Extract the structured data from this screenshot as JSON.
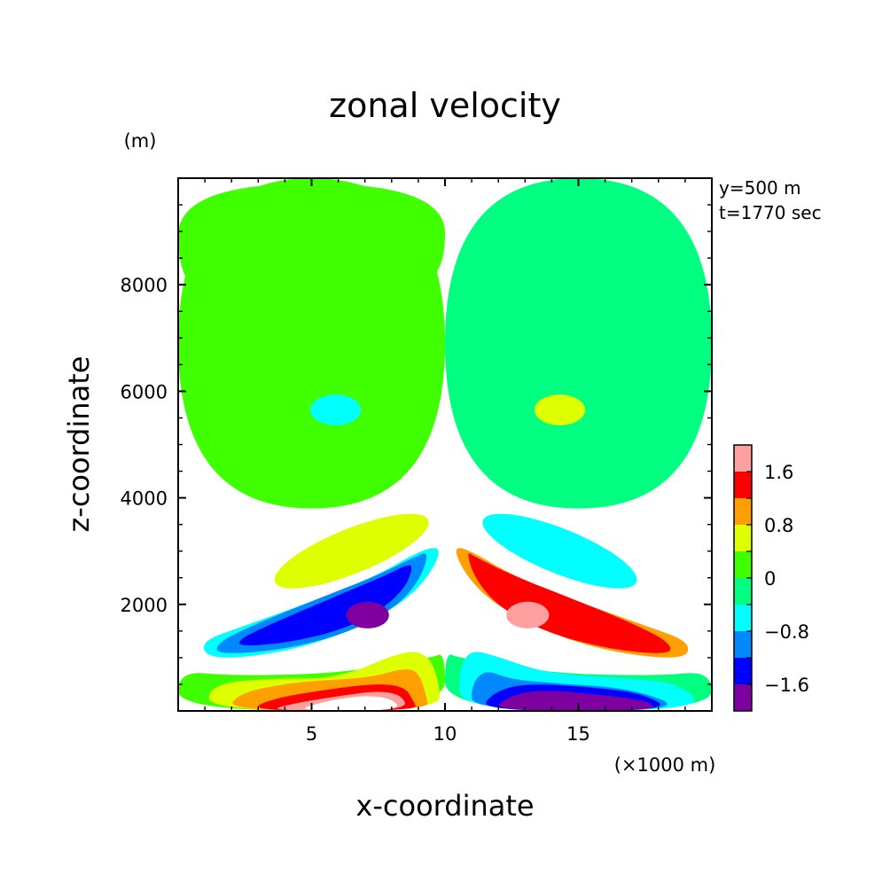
{
  "chart_data": {
    "type": "heatmap",
    "title": "zonal velocity",
    "xlabel": "x-coordinate",
    "ylabel": "z-coordinate",
    "x_unit": "(×1000 m)",
    "y_unit": "(m)",
    "annotations": [
      "y=500 m",
      "t=1770 sec"
    ],
    "xlim": [
      0,
      20
    ],
    "ylim": [
      0,
      10000
    ],
    "x_ticks": [
      5,
      10,
      15
    ],
    "x_tick_labels": [
      "5",
      "10",
      "15"
    ],
    "y_ticks": [
      2000,
      4000,
      6000,
      8000
    ],
    "y_tick_labels": [
      "2000",
      "4000",
      "6000",
      "8000"
    ],
    "colorbar": {
      "levels": [
        -2.0,
        -1.6,
        -1.2,
        -0.8,
        -0.4,
        0,
        0.4,
        0.8,
        1.2,
        1.6,
        2.0
      ],
      "colors": [
        "#7f00a0",
        "#0000ff",
        "#0088ff",
        "#00ffff",
        "#00ff80",
        "#40ff00",
        "#ddff00",
        "#ffa000",
        "#ff0000",
        "#ffa0a0"
      ],
      "tick_values": [
        -1.6,
        -0.8,
        0,
        0.8,
        1.6
      ],
      "tick_labels": [
        "−1.6",
        "−0.8",
        "0",
        "0.8",
        "1.6"
      ]
    },
    "regions": [
      {
        "name": "upper-left",
        "level": 0.0,
        "points": [
          [
            0,
            10000
          ],
          [
            10,
            10000
          ],
          [
            10,
            3800
          ],
          [
            0,
            3800
          ]
        ]
      },
      {
        "name": "upper-right",
        "level": -0.2,
        "points": [
          [
            10,
            10000
          ],
          [
            20,
            10000
          ],
          [
            20,
            3800
          ],
          [
            10,
            3800
          ]
        ]
      },
      {
        "name": "top-band-left",
        "level": 0.1,
        "points": [
          [
            0,
            9900
          ],
          [
            10,
            9900
          ],
          [
            10,
            8050
          ],
          [
            8,
            8150
          ],
          [
            5,
            8000
          ],
          [
            2,
            7850
          ],
          [
            0,
            7950
          ]
        ]
      },
      {
        "name": "cyan-blob-left",
        "level": -0.5,
        "ellipse": [
          5.9,
          5650,
          0.95,
          290
        ]
      },
      {
        "name": "yellow-blob-right",
        "level": 0.5,
        "ellipse": [
          14.3,
          5650,
          0.95,
          290
        ]
      },
      {
        "name": "yellow-band-left",
        "level": 0.5,
        "ellipse": [
          6.5,
          3000,
          3.1,
          420,
          -22
        ]
      },
      {
        "name": "cyan-band-right",
        "level": -0.5,
        "ellipse": [
          14.3,
          3000,
          3.1,
          420,
          22
        ]
      },
      {
        "name": "left-cyan",
        "level": -0.6,
        "points": [
          [
            9.9,
            3100
          ],
          [
            9.5,
            2600
          ],
          [
            8.5,
            2050
          ],
          [
            6.5,
            1500
          ],
          [
            4,
            1100
          ],
          [
            1.2,
            950
          ],
          [
            0.8,
            1300
          ],
          [
            2.5,
            1600
          ],
          [
            5,
            2050
          ],
          [
            7.5,
            2550
          ],
          [
            9,
            3000
          ]
        ]
      },
      {
        "name": "left-blue",
        "level": -1.0,
        "points": [
          [
            9.4,
            3000
          ],
          [
            9.1,
            2500
          ],
          [
            8.2,
            1950
          ],
          [
            6.4,
            1470
          ],
          [
            4,
            1150
          ],
          [
            1.4,
            1050
          ],
          [
            1.5,
            1300
          ],
          [
            3,
            1650
          ],
          [
            5.2,
            2100
          ],
          [
            7.5,
            2550
          ],
          [
            8.9,
            2900
          ]
        ]
      },
      {
        "name": "left-dark-blue",
        "level": -1.4,
        "points": [
          [
            8.8,
            2700
          ],
          [
            8.5,
            2300
          ],
          [
            7.5,
            1850
          ],
          [
            6,
            1500
          ],
          [
            4,
            1270
          ],
          [
            2.2,
            1210
          ],
          [
            2.4,
            1380
          ],
          [
            3.8,
            1700
          ],
          [
            5.8,
            2130
          ],
          [
            7.8,
            2550
          ],
          [
            8.6,
            2750
          ]
        ]
      },
      {
        "name": "left-purple",
        "level": -1.8,
        "ellipse": [
          7.1,
          1800,
          0.8,
          250
        ]
      },
      {
        "name": "right-orange",
        "level": 1.0,
        "points": [
          [
            10.3,
            3100
          ],
          [
            10.7,
            2600
          ],
          [
            11.7,
            2050
          ],
          [
            13.7,
            1500
          ],
          [
            16.2,
            1100
          ],
          [
            19,
            950
          ],
          [
            19.2,
            1300
          ],
          [
            17.5,
            1600
          ],
          [
            15,
            2050
          ],
          [
            12.5,
            2550
          ],
          [
            11,
            3000
          ]
        ]
      },
      {
        "name": "right-red",
        "level": 1.4,
        "points": [
          [
            10.8,
            3000
          ],
          [
            11.1,
            2500
          ],
          [
            12,
            1950
          ],
          [
            13.8,
            1470
          ],
          [
            16.2,
            1150
          ],
          [
            18.5,
            1050
          ],
          [
            18.4,
            1300
          ],
          [
            17,
            1650
          ],
          [
            14.8,
            2100
          ],
          [
            12.5,
            2550
          ],
          [
            11.1,
            2900
          ]
        ]
      },
      {
        "name": "right-pink",
        "level": 1.8,
        "ellipse": [
          13.1,
          1800,
          0.8,
          250
        ]
      },
      {
        "name": "low-green-left",
        "level": 0.0,
        "points": [
          [
            0,
            750
          ],
          [
            2,
            660
          ],
          [
            6,
            700
          ],
          [
            9.5,
            1000
          ],
          [
            10,
            1100
          ],
          [
            10,
            0
          ],
          [
            0,
            0
          ]
        ]
      },
      {
        "name": "low-green-right",
        "level": -0.2,
        "points": [
          [
            10,
            1100
          ],
          [
            10.5,
            1000
          ],
          [
            14,
            700
          ],
          [
            18,
            660
          ],
          [
            20,
            750
          ],
          [
            20,
            0
          ],
          [
            10,
            0
          ]
        ]
      },
      {
        "name": "bottom-left-yellow",
        "level": 0.5,
        "points": [
          [
            1.1,
            0
          ],
          [
            1.2,
            500
          ],
          [
            3.5,
            620
          ],
          [
            6,
            600
          ],
          [
            8.5,
            1150
          ],
          [
            9.4,
            1050
          ],
          [
            9.8,
            500
          ],
          [
            9.8,
            0
          ]
        ]
      },
      {
        "name": "bottom-left-orange",
        "level": 1.0,
        "points": [
          [
            1.8,
            0
          ],
          [
            2.3,
            350
          ],
          [
            4.5,
            550
          ],
          [
            7.2,
            620
          ],
          [
            8.4,
            800
          ],
          [
            9,
            750
          ],
          [
            9.3,
            300
          ],
          [
            9.4,
            0
          ]
        ]
      },
      {
        "name": "bottom-left-red",
        "level": 1.4,
        "points": [
          [
            2.6,
            0
          ],
          [
            3.5,
            230
          ],
          [
            5.5,
            400
          ],
          [
            7.5,
            520
          ],
          [
            8.5,
            450
          ],
          [
            8.8,
            200
          ],
          [
            9.0,
            0
          ]
        ]
      },
      {
        "name": "bottom-left-pink",
        "level": 1.8,
        "points": [
          [
            3.3,
            0
          ],
          [
            4.3,
            140
          ],
          [
            6,
            280
          ],
          [
            7.5,
            380
          ],
          [
            8.4,
            300
          ],
          [
            8.6,
            0
          ]
        ]
      },
      {
        "name": "bottom-left-white",
        "level": 2.2,
        "points": [
          [
            4.3,
            0
          ],
          [
            5.5,
            180
          ],
          [
            7,
            300
          ],
          [
            8.1,
            220
          ],
          [
            8.3,
            0
          ]
        ]
      },
      {
        "name": "bottom-right-cyan",
        "level": -0.6,
        "points": [
          [
            10.6,
            0
          ],
          [
            10.5,
            700
          ],
          [
            10.9,
            1150
          ],
          [
            11.8,
            1050
          ],
          [
            13.8,
            700
          ],
          [
            16.5,
            620
          ],
          [
            18.8,
            530
          ],
          [
            19.8,
            0
          ]
        ]
      },
      {
        "name": "bottom-right-lightblue",
        "level": -1.0,
        "points": [
          [
            11.0,
            0
          ],
          [
            11.0,
            500
          ],
          [
            11.5,
            780
          ],
          [
            12.4,
            600
          ],
          [
            14,
            520
          ],
          [
            17,
            430
          ],
          [
            19.2,
            0
          ]
        ]
      },
      {
        "name": "bottom-right-blue",
        "level": -1.4,
        "points": [
          [
            11.3,
            0
          ],
          [
            11.8,
            350
          ],
          [
            13,
            520
          ],
          [
            15.5,
            450
          ],
          [
            17.5,
            320
          ],
          [
            18.5,
            0
          ]
        ]
      },
      {
        "name": "bottom-right-purple",
        "level": -1.8,
        "points": [
          [
            11.7,
            0
          ],
          [
            12.4,
            280
          ],
          [
            13.5,
            400
          ],
          [
            15.5,
            320
          ],
          [
            17.6,
            200
          ],
          [
            18.0,
            0
          ]
        ]
      }
    ]
  }
}
